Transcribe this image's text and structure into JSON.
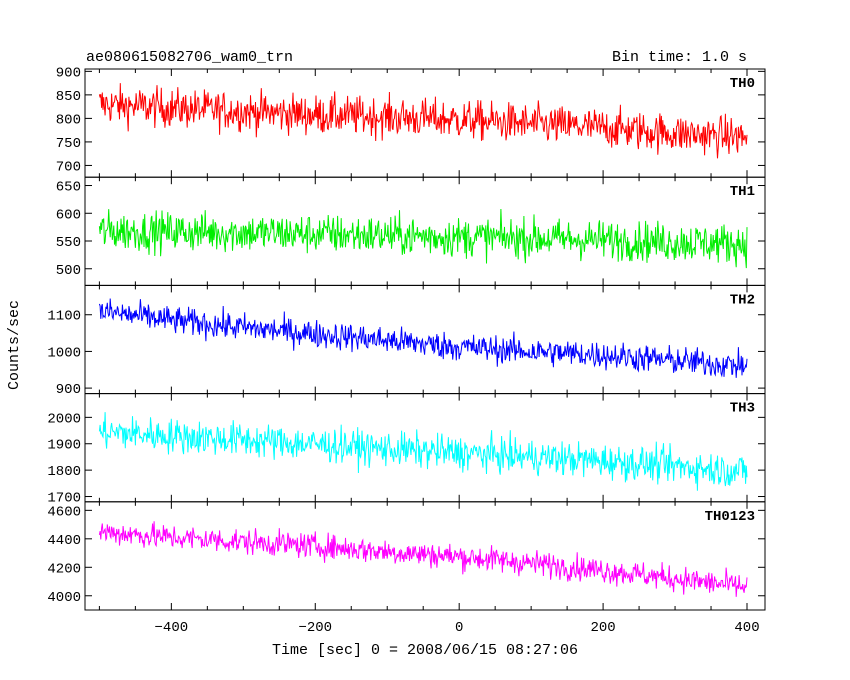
{
  "chart_data": {
    "type": "line",
    "title": "ae080615082706_wam0_trn",
    "bin_time_label": "Bin time: 1.0 s",
    "xlabel": "Time [sec] 0 = 2008/06/15 08:27:06",
    "ylabel": "Counts/sec",
    "xlim": [
      -520,
      425
    ],
    "xticks": [
      -400,
      -200,
      0,
      200,
      400
    ],
    "grid": false,
    "panels": [
      {
        "name": "TH0",
        "color": "#ff0000",
        "ylim": [
          675,
          905
        ],
        "yticks": [
          700,
          750,
          800,
          850,
          900
        ],
        "x": [
          -500,
          -400,
          -300,
          -200,
          -100,
          0,
          100,
          200,
          300,
          400
        ],
        "y": [
          830,
          822,
          815,
          808,
          803,
          797,
          788,
          780,
          768,
          760
        ],
        "noise": 35
      },
      {
        "name": "TH1",
        "color": "#00ee00",
        "ylim": [
          470,
          665
        ],
        "yticks": [
          500,
          550,
          600,
          650
        ],
        "x": [
          -500,
          -400,
          -300,
          -200,
          -100,
          0,
          100,
          200,
          300,
          400
        ],
        "y": [
          568,
          567,
          565,
          563,
          560,
          557,
          555,
          552,
          548,
          545
        ],
        "noise": 30
      },
      {
        "name": "TH2",
        "color": "#0000ff",
        "ylim": [
          885,
          1180
        ],
        "yticks": [
          900,
          1000,
          1100
        ],
        "x": [
          -500,
          -400,
          -300,
          -200,
          -100,
          0,
          100,
          200,
          300,
          400
        ],
        "y": [
          1110,
          1085,
          1065,
          1048,
          1030,
          1012,
          1000,
          990,
          975,
          960
        ],
        "noise": 32
      },
      {
        "name": "TH3",
        "color": "#00ffff",
        "ylim": [
          1680,
          2090
        ],
        "yticks": [
          1700,
          1800,
          1900,
          2000
        ],
        "x": [
          -500,
          -400,
          -300,
          -200,
          -100,
          0,
          100,
          200,
          300,
          400
        ],
        "y": [
          1945,
          1930,
          1915,
          1898,
          1880,
          1865,
          1850,
          1835,
          1815,
          1795
        ],
        "noise": 55
      },
      {
        "name": "TH0123",
        "color": "#ff00ff",
        "ylim": [
          3900,
          4660
        ],
        "yticks": [
          4000,
          4200,
          4400,
          4600
        ],
        "x": [
          -500,
          -400,
          -300,
          -200,
          -100,
          0,
          100,
          200,
          300,
          400
        ],
        "y": [
          4450,
          4410,
          4380,
          4350,
          4310,
          4275,
          4230,
          4180,
          4120,
          4060
        ],
        "noise": 75
      }
    ]
  }
}
